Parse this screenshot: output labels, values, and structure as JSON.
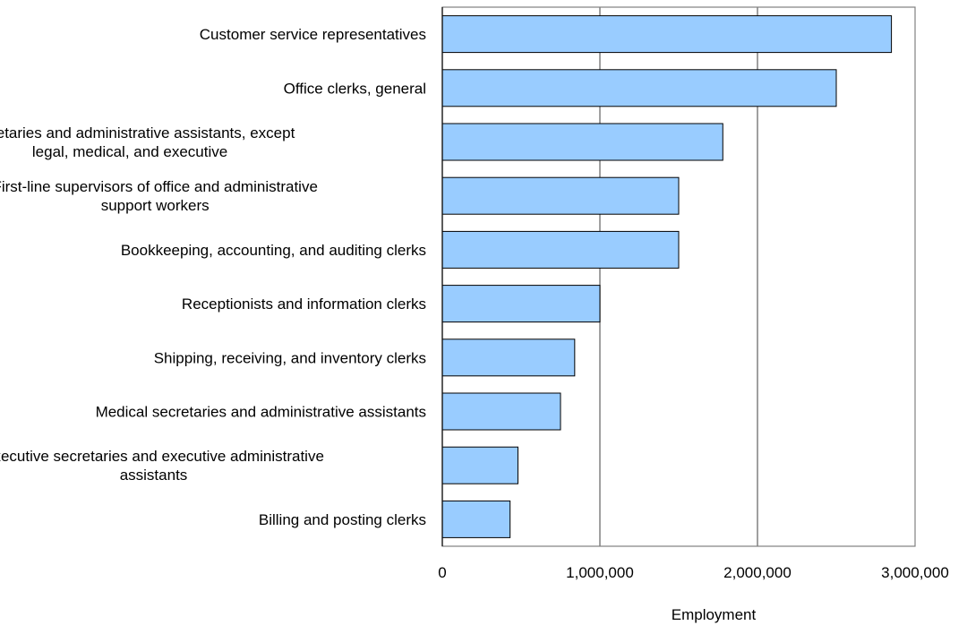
{
  "chart_data": {
    "type": "bar",
    "orientation": "horizontal",
    "title": "",
    "xlabel": "Employment",
    "ylabel": "",
    "xlim": [
      0,
      3000000
    ],
    "xticks": [
      0,
      1000000,
      2000000,
      3000000
    ],
    "xtick_labels": [
      "0",
      "1,000,000",
      "2,000,000",
      "3,000,000"
    ],
    "grid": "vertical gridlines",
    "legend": "none",
    "categories": [
      [
        "Customer service representatives"
      ],
      [
        "Office clerks, general"
      ],
      [
        "Secretaries and administrative assistants, except",
        "legal, medical, and executive"
      ],
      [
        "First-line supervisors of office and administrative",
        "support workers"
      ],
      [
        "Bookkeeping, accounting, and auditing clerks"
      ],
      [
        "Receptionists and information clerks"
      ],
      [
        "Shipping, receiving, and inventory clerks"
      ],
      [
        "Medical secretaries and administrative assistants"
      ],
      [
        "Executive secretaries and executive administrative",
        "assistants"
      ],
      [
        "Billing and posting clerks"
      ]
    ],
    "values": [
      2850000,
      2500000,
      1780000,
      1500000,
      1500000,
      1000000,
      840000,
      750000,
      480000,
      430000
    ],
    "colors": {
      "bar_fill": "#99ccff",
      "bar_stroke": "#000000",
      "grid": "#808080",
      "frame": "#808080"
    }
  }
}
